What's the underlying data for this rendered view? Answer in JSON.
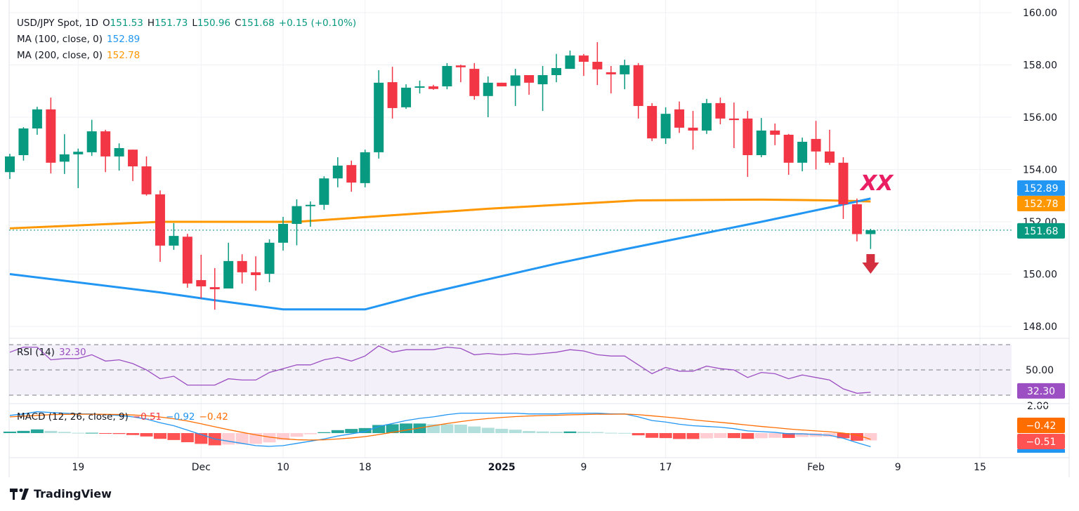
{
  "legend": {
    "symbol": "USD/JPY Spot, 1D",
    "o_label": "O",
    "o": "151.53",
    "h_label": "H",
    "h": "151.73",
    "l_label": "L",
    "l": "150.96",
    "c_label": "C",
    "c": "151.68",
    "change": "+0.15 (+0.10%)",
    "ma100_label": "MA (100, close, 0)",
    "ma100": "152.89",
    "ma200_label": "MA (200, close, 0)",
    "ma200": "152.78",
    "rsi_label": "RSI (14)",
    "rsi": "32.30",
    "macd_label": "MACD (12, 26, close, 9)",
    "macd_hist": "−0.51",
    "macd_line": "−0.92",
    "macd_signal": "−0.42"
  },
  "annotation": {
    "text": "XX",
    "arrow": "down-arrow-icon"
  },
  "footer": {
    "brand": "TradingView"
  },
  "colors": {
    "up": "#089981",
    "down": "#f23645",
    "ma100": "#2196f3",
    "ma200": "#ff9800",
    "rsi": "#9c4fc2",
    "macd": "#2196f3",
    "signal": "#ff6d00",
    "annotation": "#e91e63"
  },
  "chart_data": {
    "type": "candlestick",
    "title": "USD/JPY Spot, 1D",
    "y_axis": {
      "range": [
        147.5,
        160.5
      ],
      "ticks": [
        "148.00",
        "150.00",
        "152.00",
        "154.00",
        "156.00",
        "158.00",
        "160.00"
      ]
    },
    "x_ticks": [
      {
        "index": 5,
        "label": "19",
        "bold": false
      },
      {
        "index": 14,
        "label": "Dec",
        "bold": false
      },
      {
        "index": 20,
        "label": "10",
        "bold": false
      },
      {
        "index": 26,
        "label": "18",
        "bold": false
      },
      {
        "index": 36,
        "label": "2025",
        "bold": true
      },
      {
        "index": 42,
        "label": "9",
        "bold": false
      },
      {
        "index": 48,
        "label": "17",
        "bold": false
      },
      {
        "index": 59,
        "label": "Feb",
        "bold": false
      },
      {
        "index": 65,
        "label": "9",
        "bold": false
      },
      {
        "index": 71,
        "label": "15",
        "bold": false
      }
    ],
    "ohlc": [
      [
        153.9,
        154.6,
        153.64,
        154.5
      ],
      [
        154.55,
        155.62,
        154.34,
        155.57
      ],
      [
        155.57,
        156.4,
        155.33,
        156.3
      ],
      [
        156.3,
        156.75,
        153.85,
        154.26
      ],
      [
        154.3,
        155.35,
        153.83,
        154.58
      ],
      [
        154.58,
        154.8,
        153.29,
        154.68
      ],
      [
        154.66,
        155.9,
        154.52,
        155.46
      ],
      [
        155.46,
        155.52,
        153.9,
        154.5
      ],
      [
        154.5,
        155.0,
        153.96,
        154.82
      ],
      [
        154.76,
        154.76,
        153.56,
        154.12
      ],
      [
        154.12,
        154.5,
        153.0,
        153.05
      ],
      [
        153.05,
        153.2,
        150.47,
        151.09
      ],
      [
        151.09,
        151.95,
        150.93,
        151.46
      ],
      [
        151.43,
        151.54,
        149.48,
        149.64
      ],
      [
        149.77,
        150.74,
        149.07,
        149.53
      ],
      [
        149.5,
        150.23,
        148.64,
        149.42
      ],
      [
        149.45,
        151.2,
        149.45,
        150.5
      ],
      [
        150.5,
        150.76,
        149.64,
        150.07
      ],
      [
        150.07,
        150.68,
        149.37,
        149.96
      ],
      [
        150.01,
        151.33,
        149.69,
        151.2
      ],
      [
        151.2,
        152.19,
        150.9,
        151.92
      ],
      [
        151.92,
        152.86,
        151.1,
        152.6
      ],
      [
        152.6,
        152.78,
        151.81,
        152.65
      ],
      [
        152.65,
        153.74,
        152.46,
        153.66
      ],
      [
        153.66,
        154.47,
        153.32,
        154.15
      ],
      [
        154.17,
        154.34,
        153.15,
        153.5
      ],
      [
        153.48,
        154.76,
        153.32,
        154.66
      ],
      [
        154.66,
        157.8,
        154.42,
        157.32
      ],
      [
        157.34,
        157.93,
        155.95,
        156.35
      ],
      [
        156.38,
        157.26,
        156.32,
        157.13
      ],
      [
        157.13,
        157.4,
        156.91,
        157.18
      ],
      [
        157.18,
        157.24,
        157.05,
        157.08
      ],
      [
        157.18,
        158.07,
        157.07,
        157.96
      ],
      [
        157.98,
        158.01,
        157.34,
        157.91
      ],
      [
        157.85,
        158.07,
        156.67,
        156.81
      ],
      [
        156.81,
        157.56,
        156.0,
        157.32
      ],
      [
        157.32,
        157.32,
        157.18,
        157.18
      ],
      [
        157.2,
        157.85,
        156.43,
        157.6
      ],
      [
        157.61,
        157.61,
        156.86,
        157.32
      ],
      [
        157.26,
        157.96,
        156.24,
        157.61
      ],
      [
        157.61,
        158.42,
        157.34,
        157.88
      ],
      [
        157.85,
        158.55,
        157.85,
        158.36
      ],
      [
        158.36,
        158.42,
        157.58,
        158.12
      ],
      [
        158.12,
        158.87,
        157.23,
        157.83
      ],
      [
        157.72,
        157.96,
        156.91,
        157.64
      ],
      [
        157.64,
        158.2,
        157.07,
        157.99
      ],
      [
        157.99,
        158.07,
        155.95,
        156.43
      ],
      [
        156.43,
        156.54,
        155.09,
        155.19
      ],
      [
        155.19,
        156.38,
        154.98,
        156.13
      ],
      [
        156.3,
        156.6,
        155.4,
        155.6
      ],
      [
        155.6,
        156.24,
        154.76,
        155.49
      ],
      [
        155.49,
        156.7,
        155.36,
        156.54
      ],
      [
        156.54,
        156.75,
        155.73,
        155.95
      ],
      [
        155.95,
        156.56,
        154.82,
        155.89
      ],
      [
        155.95,
        156.24,
        153.72,
        154.55
      ],
      [
        154.55,
        155.97,
        154.47,
        155.49
      ],
      [
        155.49,
        155.76,
        154.93,
        155.33
      ],
      [
        155.33,
        155.36,
        153.8,
        154.26
      ],
      [
        154.26,
        155.22,
        153.93,
        155.06
      ],
      [
        155.17,
        155.86,
        154.0,
        154.69
      ],
      [
        154.69,
        155.52,
        154.18,
        154.26
      ],
      [
        154.26,
        154.47,
        152.11,
        152.67
      ],
      [
        152.67,
        152.89,
        151.25,
        151.53
      ],
      [
        151.53,
        151.73,
        150.96,
        151.68
      ]
    ],
    "ma100": [
      [
        0,
        150.0
      ],
      [
        11,
        149.3
      ],
      [
        15,
        149.0
      ],
      [
        20,
        148.65
      ],
      [
        26,
        148.65
      ],
      [
        30,
        149.2
      ],
      [
        40,
        150.4
      ],
      [
        45,
        150.95
      ],
      [
        55,
        152.0
      ],
      [
        60,
        152.55
      ],
      [
        63,
        152.89
      ]
    ],
    "ma200": [
      [
        0,
        151.75
      ],
      [
        11,
        152.0
      ],
      [
        21,
        152.0
      ],
      [
        35,
        152.5
      ],
      [
        46,
        152.82
      ],
      [
        55,
        152.85
      ],
      [
        60,
        152.82
      ],
      [
        63,
        152.78
      ]
    ],
    "last_price": 151.68,
    "rsi": {
      "levels": [
        70,
        50,
        30
      ],
      "tick": "50.00",
      "values": [
        64,
        68,
        68,
        58,
        59,
        59,
        62,
        57,
        58,
        55,
        50,
        43,
        45,
        38,
        38,
        38,
        43,
        42,
        42,
        48,
        51,
        54,
        54,
        58,
        60,
        57,
        61,
        69,
        64,
        66,
        66,
        66,
        68,
        67,
        62,
        63,
        62,
        63,
        62,
        63,
        64,
        66,
        65,
        62,
        61,
        61,
        54,
        47,
        52,
        49,
        49,
        53,
        51,
        50,
        44,
        48,
        47,
        43,
        46,
        44,
        42,
        35,
        31.5,
        32.3
      ]
    },
    "macd": {
      "tick": "2.00",
      "macd": [
        1.2,
        1.3,
        1.45,
        1.4,
        1.35,
        1.3,
        1.3,
        1.25,
        1.2,
        1.1,
        0.95,
        0.7,
        0.5,
        0.2,
        -0.1,
        -0.4,
        -0.55,
        -0.7,
        -0.85,
        -0.9,
        -0.85,
        -0.7,
        -0.55,
        -0.4,
        -0.2,
        -0.05,
        0.1,
        0.45,
        0.65,
        0.85,
        1.0,
        1.1,
        1.25,
        1.35,
        1.35,
        1.35,
        1.35,
        1.35,
        1.3,
        1.3,
        1.3,
        1.35,
        1.35,
        1.35,
        1.3,
        1.3,
        1.1,
        0.85,
        0.75,
        0.6,
        0.5,
        0.45,
        0.4,
        0.3,
        0.15,
        0.1,
        0.05,
        -0.05,
        -0.05,
        -0.1,
        -0.15,
        -0.35,
        -0.65,
        -0.92
      ],
      "signal": [
        1.1,
        1.15,
        1.2,
        1.25,
        1.27,
        1.28,
        1.28,
        1.27,
        1.26,
        1.23,
        1.18,
        1.09,
        0.97,
        0.82,
        0.63,
        0.43,
        0.23,
        0.05,
        -0.12,
        -0.27,
        -0.38,
        -0.45,
        -0.47,
        -0.46,
        -0.4,
        -0.33,
        -0.24,
        -0.1,
        0.05,
        0.2,
        0.35,
        0.5,
        0.65,
        0.78,
        0.9,
        0.99,
        1.06,
        1.12,
        1.16,
        1.19,
        1.21,
        1.24,
        1.26,
        1.28,
        1.28,
        1.29,
        1.25,
        1.17,
        1.09,
        1.0,
        0.9,
        0.81,
        0.73,
        0.64,
        0.54,
        0.45,
        0.37,
        0.28,
        0.21,
        0.15,
        0.09,
        0.0,
        -0.13,
        -0.42
      ]
    },
    "badges": {
      "ma100": "152.89",
      "ma200": "152.78",
      "last": "151.68",
      "rsi": "32.30",
      "signal": "−0.42",
      "hist": "−0.51"
    }
  }
}
